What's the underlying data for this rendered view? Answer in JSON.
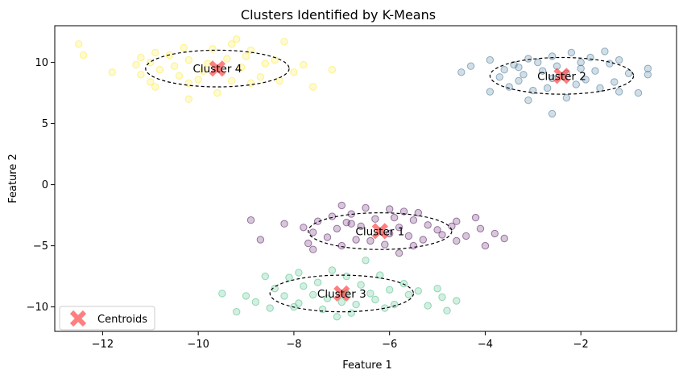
{
  "chart_data": {
    "type": "scatter",
    "title": "Clusters Identified by K-Means",
    "xlabel": "Feature 1",
    "ylabel": "Feature 2",
    "xlim": [
      -13.0,
      0.0
    ],
    "ylim": [
      -12.0,
      13.0
    ],
    "xticks": [
      -12,
      -10,
      -8,
      -6,
      -4,
      -2
    ],
    "yticks": [
      -10,
      -5,
      0,
      5,
      10
    ],
    "grid": false,
    "legend": {
      "placement": "lower-left",
      "entries": [
        "Centroids"
      ]
    },
    "colors": {
      "cluster-1": "#440154",
      "cluster-2": "#31688e",
      "cluster-3": "#35b779",
      "cluster-4": "#fde725",
      "centroid": "#ff3b3b"
    },
    "clusters": [
      {
        "label": "Cluster 1",
        "center": [
          -6.2,
          -3.8
        ],
        "ellipse_semi_axes": [
          1.5,
          1.5
        ],
        "points": [
          [
            -7.0,
            -1.7
          ],
          [
            -6.5,
            -1.9
          ],
          [
            -6.0,
            -2.0
          ],
          [
            -5.7,
            -2.2
          ],
          [
            -5.4,
            -2.3
          ],
          [
            -6.8,
            -2.4
          ],
          [
            -7.2,
            -2.6
          ],
          [
            -5.9,
            -2.7
          ],
          [
            -6.3,
            -2.8
          ],
          [
            -5.5,
            -2.9
          ],
          [
            -8.2,
            -3.2
          ],
          [
            -7.5,
            -3.0
          ],
          [
            -6.9,
            -3.1
          ],
          [
            -5.2,
            -3.3
          ],
          [
            -4.6,
            -3.0
          ],
          [
            -4.2,
            -2.7
          ],
          [
            -7.8,
            -3.5
          ],
          [
            -7.1,
            -3.6
          ],
          [
            -6.6,
            -3.4
          ],
          [
            -5.8,
            -3.5
          ],
          [
            -5.0,
            -3.7
          ],
          [
            -4.7,
            -3.4
          ],
          [
            -4.1,
            -3.6
          ],
          [
            -7.6,
            -3.9
          ],
          [
            -6.0,
            -4.0
          ],
          [
            -5.6,
            -4.2
          ],
          [
            -4.9,
            -4.1
          ],
          [
            -4.4,
            -4.2
          ],
          [
            -3.8,
            -4.0
          ],
          [
            -8.7,
            -4.5
          ],
          [
            -7.3,
            -4.3
          ],
          [
            -6.7,
            -4.5
          ],
          [
            -6.4,
            -4.6
          ],
          [
            -5.3,
            -4.5
          ],
          [
            -4.6,
            -4.6
          ],
          [
            -3.6,
            -4.4
          ],
          [
            -7.7,
            -4.8
          ],
          [
            -7.0,
            -5.0
          ],
          [
            -6.1,
            -4.9
          ],
          [
            -5.5,
            -5.0
          ],
          [
            -4.0,
            -5.0
          ],
          [
            -7.6,
            -5.3
          ],
          [
            -5.8,
            -5.6
          ],
          [
            -8.9,
            -2.9
          ],
          [
            -6.8,
            -3.2
          ]
        ]
      },
      {
        "label": "Cluster 2",
        "center": [
          -2.4,
          8.9
        ],
        "ellipse_semi_axes": [
          1.5,
          1.5
        ],
        "points": [
          [
            -2.2,
            10.8
          ],
          [
            -1.5,
            10.9
          ],
          [
            -2.6,
            10.5
          ],
          [
            -1.8,
            10.4
          ],
          [
            -3.1,
            10.3
          ],
          [
            -1.2,
            10.2
          ],
          [
            -3.9,
            10.2
          ],
          [
            -2.9,
            10.0
          ],
          [
            -2.0,
            10.0
          ],
          [
            -1.4,
            9.9
          ],
          [
            -3.4,
            9.8
          ],
          [
            -2.5,
            9.7
          ],
          [
            -4.3,
            9.7
          ],
          [
            -0.6,
            9.5
          ],
          [
            -3.6,
            9.4
          ],
          [
            -2.8,
            9.3
          ],
          [
            -1.7,
            9.3
          ],
          [
            -4.5,
            9.2
          ],
          [
            -3.2,
            9.0
          ],
          [
            -2.3,
            9.1
          ],
          [
            -1.0,
            9.1
          ],
          [
            -0.6,
            9.0
          ],
          [
            -3.7,
            8.8
          ],
          [
            -2.6,
            8.7
          ],
          [
            -1.9,
            8.6
          ],
          [
            -3.3,
            8.5
          ],
          [
            -1.3,
            8.4
          ],
          [
            -2.1,
            8.2
          ],
          [
            -3.5,
            8.0
          ],
          [
            -2.7,
            7.9
          ],
          [
            -1.6,
            7.9
          ],
          [
            -3.0,
            7.7
          ],
          [
            -3.9,
            7.6
          ],
          [
            -1.2,
            7.6
          ],
          [
            -0.8,
            7.5
          ],
          [
            -2.3,
            7.1
          ],
          [
            -3.1,
            6.9
          ],
          [
            -2.6,
            5.8
          ],
          [
            -3.3,
            9.6
          ],
          [
            -2.0,
            9.5
          ]
        ]
      },
      {
        "label": "Cluster 3",
        "center": [
          -7.0,
          -8.9
        ],
        "ellipse_semi_axes": [
          1.5,
          1.5
        ],
        "points": [
          [
            -6.5,
            -6.2
          ],
          [
            -7.2,
            -7.0
          ],
          [
            -7.9,
            -7.2
          ],
          [
            -8.1,
            -7.6
          ],
          [
            -6.9,
            -7.5
          ],
          [
            -6.2,
            -7.4
          ],
          [
            -8.6,
            -7.5
          ],
          [
            -7.5,
            -8.0
          ],
          [
            -5.7,
            -8.1
          ],
          [
            -6.6,
            -8.2
          ],
          [
            -7.8,
            -8.3
          ],
          [
            -8.4,
            -8.5
          ],
          [
            -6.0,
            -8.6
          ],
          [
            -5.4,
            -8.7
          ],
          [
            -5.0,
            -8.5
          ],
          [
            -6.9,
            -8.9
          ],
          [
            -7.6,
            -9.0
          ],
          [
            -8.2,
            -9.1
          ],
          [
            -5.6,
            -9.0
          ],
          [
            -4.9,
            -9.2
          ],
          [
            -9.5,
            -8.9
          ],
          [
            -9.0,
            -9.1
          ],
          [
            -7.3,
            -9.3
          ],
          [
            -6.3,
            -9.4
          ],
          [
            -4.6,
            -9.5
          ],
          [
            -8.8,
            -9.6
          ],
          [
            -7.9,
            -9.7
          ],
          [
            -6.7,
            -9.8
          ],
          [
            -5.9,
            -9.8
          ],
          [
            -5.2,
            -9.9
          ],
          [
            -8.5,
            -10.1
          ],
          [
            -7.4,
            -10.2
          ],
          [
            -6.1,
            -10.1
          ],
          [
            -9.2,
            -10.4
          ],
          [
            -6.8,
            -10.5
          ],
          [
            -7.1,
            -10.8
          ],
          [
            -4.8,
            -10.3
          ],
          [
            -8.0,
            -10.0
          ],
          [
            -6.4,
            -8.9
          ],
          [
            -7.0,
            -9.6
          ]
        ]
      },
      {
        "label": "Cluster 4",
        "center": [
          -9.6,
          9.5
        ],
        "ellipse_semi_axes": [
          1.5,
          1.5
        ],
        "points": [
          [
            -12.5,
            11.5
          ],
          [
            -12.4,
            10.6
          ],
          [
            -9.2,
            11.9
          ],
          [
            -8.2,
            11.7
          ],
          [
            -9.3,
            11.5
          ],
          [
            -10.3,
            11.2
          ],
          [
            -9.7,
            11.1
          ],
          [
            -8.9,
            11.0
          ],
          [
            -10.9,
            10.8
          ],
          [
            -10.6,
            10.6
          ],
          [
            -11.2,
            10.4
          ],
          [
            -9.0,
            10.5
          ],
          [
            -8.4,
            10.2
          ],
          [
            -9.4,
            10.3
          ],
          [
            -10.2,
            10.2
          ],
          [
            -11.0,
            10.0
          ],
          [
            -9.8,
            9.9
          ],
          [
            -8.6,
            9.9
          ],
          [
            -11.3,
            9.8
          ],
          [
            -10.5,
            9.7
          ],
          [
            -9.1,
            9.6
          ],
          [
            -7.8,
            9.8
          ],
          [
            -8.0,
            9.2
          ],
          [
            -10.8,
            9.4
          ],
          [
            -11.8,
            9.2
          ],
          [
            -7.2,
            9.4
          ],
          [
            -9.9,
            9.3
          ],
          [
            -11.2,
            9.0
          ],
          [
            -10.4,
            8.9
          ],
          [
            -8.7,
            8.8
          ],
          [
            -10.0,
            8.6
          ],
          [
            -9.3,
            8.5
          ],
          [
            -8.3,
            8.5
          ],
          [
            -11.0,
            8.4
          ],
          [
            -10.2,
            8.3
          ],
          [
            -8.9,
            8.3
          ],
          [
            -10.9,
            8.0
          ],
          [
            -7.6,
            8.0
          ],
          [
            -9.6,
            7.5
          ],
          [
            -10.2,
            7.0
          ]
        ]
      }
    ]
  }
}
